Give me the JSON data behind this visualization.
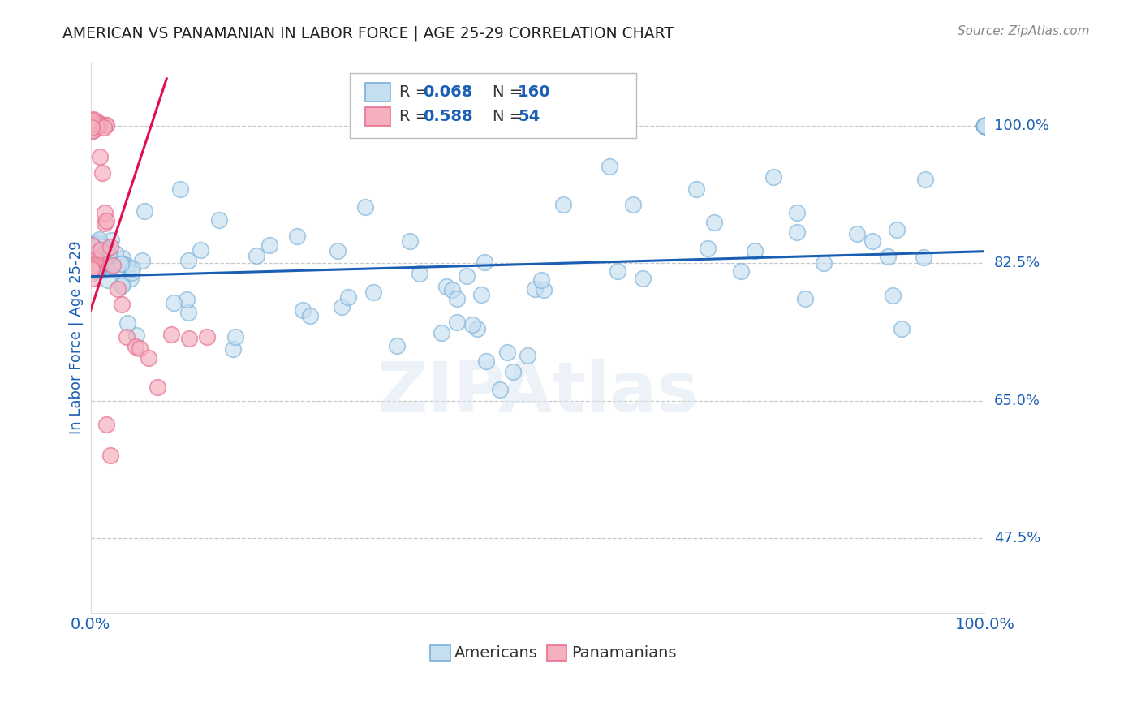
{
  "title": "AMERICAN VS PANAMANIAN IN LABOR FORCE | AGE 25-29 CORRELATION CHART",
  "source": "Source: ZipAtlas.com",
  "ylabel": "In Labor Force | Age 25-29",
  "watermark": "ZIPAtlas",
  "xlim": [
    0.0,
    1.0
  ],
  "ylim": [
    0.38,
    1.08
  ],
  "yticks": [
    0.475,
    0.65,
    0.825,
    1.0
  ],
  "ytick_labels": [
    "47.5%",
    "65.0%",
    "82.5%",
    "100.0%"
  ],
  "xtick_labels": [
    "0.0%",
    "100.0%"
  ],
  "xticks": [
    0.0,
    1.0
  ],
  "american_edge_color": "#7ab0d8",
  "american_face_color": "#c5dff0",
  "panamanian_edge_color": "#e87090",
  "panamanian_face_color": "#f5b0c0",
  "line_american_color": "#1a5fb4",
  "line_panamanian_color": "#e01050",
  "R_american": 0.068,
  "N_american": 160,
  "R_panamanian": 0.588,
  "N_panamanian": 54,
  "grid_color": "#c8c8c8",
  "title_color": "#222222",
  "ylabel_color": "#1a5fb4",
  "tick_label_color": "#1a5fb4",
  "source_color": "#888888",
  "background_color": "#ffffff",
  "am_line_x0": 0.0,
  "am_line_y0": 0.808,
  "am_line_x1": 1.0,
  "am_line_y1": 0.84,
  "pan_line_x0": 0.0,
  "pan_line_y0": 0.765,
  "pan_line_x1": 0.085,
  "pan_line_y1": 1.06
}
